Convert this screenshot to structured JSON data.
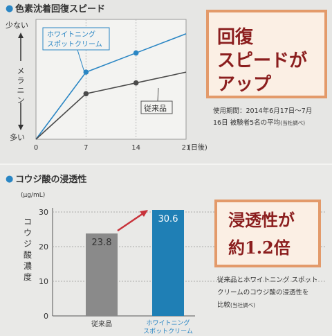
{
  "top": {
    "title": "色素沈着回復スピード",
    "yaxis_top": "少ない",
    "yaxis_mid": "メラニン",
    "yaxis_bottom": "多い",
    "xaxis_unit": "(日後)",
    "label_new": [
      "ホワイトニング",
      "スポットクリーム"
    ],
    "label_old": "従来品",
    "callout_lines": [
      "回復",
      "スピードが",
      "アップ"
    ],
    "note_lines": [
      "使用期間：2014年6月17日〜7月",
      "16日 被験者5名の平均"
    ],
    "note_suffix": "(当社調べ)"
  },
  "bottom": {
    "title": "コウジ酸の浸透性",
    "unit": "(μg/mL)",
    "ylabel": "コウジ酸濃度",
    "callout_lines": [
      "浸透性が",
      "約1.2倍"
    ],
    "note_lines": [
      "従来品とホワイトニング スポット",
      "クリームのコウジ酸の浸透性を",
      "比較"
    ],
    "note_suffix": "(当社調べ)"
  },
  "chart_data": [
    {
      "type": "line",
      "title": "色素沈着回復スピード",
      "xlabel": "(日後)",
      "ylabel": "メラニン",
      "x": [
        0,
        7,
        14,
        21
      ],
      "x_tick_labels": [
        "0",
        "7",
        "14",
        "21"
      ],
      "y_range_labels": [
        "多い",
        "少ない"
      ],
      "series": [
        {
          "name": "ホワイトニング スポットクリーム",
          "color": "#2a86c4",
          "values": [
            0,
            0.56,
            0.72,
            0.88
          ]
        },
        {
          "name": "従来品",
          "color": "#4a4a4a",
          "values": [
            0,
            0.38,
            0.47,
            0.56
          ]
        }
      ]
    },
    {
      "type": "bar",
      "title": "コウジ酸の浸透性",
      "ylabel": "コウジ酸濃度",
      "unit": "(μg/mL)",
      "categories": [
        "従来品",
        "ホワイトニング スポットクリーム"
      ],
      "values": [
        23.8,
        30.6
      ],
      "value_labels": [
        "23.8",
        "30.6"
      ],
      "colors": [
        "#8a8a8a",
        "#1f7fb5"
      ],
      "ylim": [
        0,
        30
      ],
      "yticks": [
        0,
        10,
        20,
        30
      ]
    }
  ],
  "colors": {
    "accent_blue": "#2a86c4",
    "callout_border": "#e39a6a",
    "callout_bg": "#fbefe4",
    "callout_text": "#8b1e1e"
  }
}
